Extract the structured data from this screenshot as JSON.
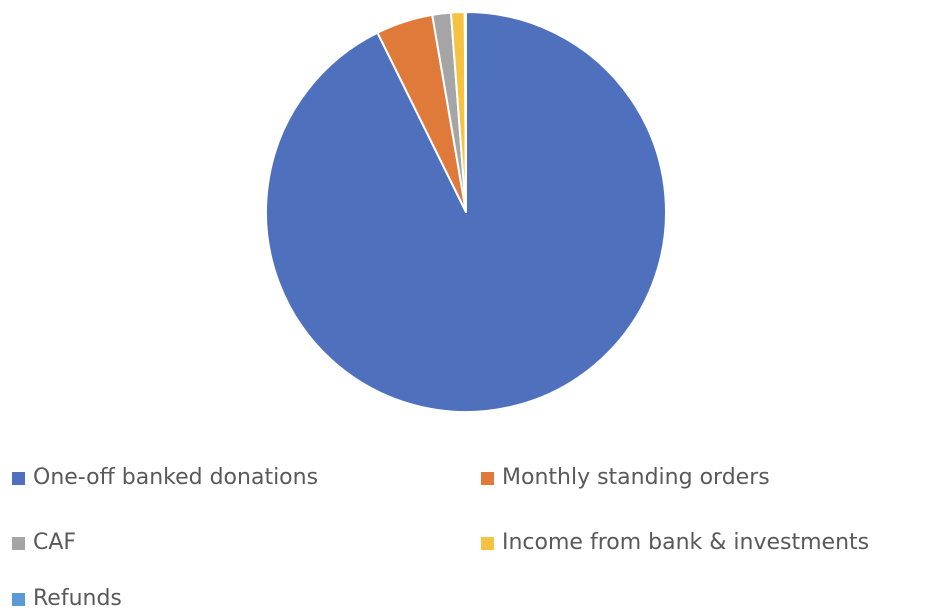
{
  "chart_data": {
    "type": "pie",
    "title": "",
    "categories": [
      "One-off banked donations",
      "Monthly standing orders",
      "CAF",
      "Income from bank & investments",
      "Refunds"
    ],
    "values": [
      92.7,
      4.6,
      1.5,
      1.1,
      0.1
    ],
    "unit": "%",
    "colors": [
      "#4f71bd",
      "#df7a3b",
      "#a5a5a5",
      "#f6c242",
      "#5b9bd5"
    ],
    "start_angle_deg": 0,
    "direction": "clockwise",
    "legend_position": "bottom"
  },
  "legend": {
    "items": [
      {
        "label": "One-off banked donations",
        "color": "#4f71bd"
      },
      {
        "label": "Monthly standing orders",
        "color": "#df7a3b"
      },
      {
        "label": "CAF",
        "color": "#a5a5a5"
      },
      {
        "label": "Income from bank & investments",
        "color": "#f6c242"
      },
      {
        "label": "Refunds",
        "color": "#5b9bd5"
      }
    ]
  }
}
